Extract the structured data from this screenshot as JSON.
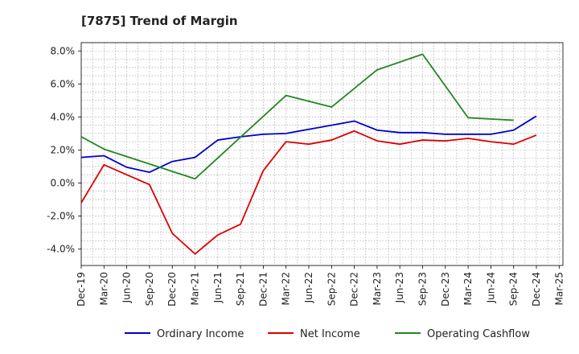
{
  "chart_data": {
    "type": "line",
    "title": "[7875]  Trend of Margin",
    "xlabel": "",
    "ylabel": "",
    "ylim": [
      -5.0,
      8.5
    ],
    "yticks": [
      8.0,
      6.0,
      4.0,
      2.0,
      0.0,
      -2.0,
      -4.0
    ],
    "ytick_labels": [
      "8.0%",
      "6.0%",
      "4.0%",
      "2.0%",
      "0.0%",
      "-2.0%",
      "-4.0%"
    ],
    "x": [
      "Dec-19",
      "Mar-20",
      "Jun-20",
      "Sep-20",
      "Dec-20",
      "Mar-21",
      "Jun-21",
      "Sep-21",
      "Dec-21",
      "Mar-22",
      "Jun-22",
      "Sep-22",
      "Dec-22",
      "Mar-23",
      "Jun-23",
      "Sep-23",
      "Dec-23",
      "Mar-24",
      "Jun-24",
      "Sep-24",
      "Dec-24",
      "Mar-25"
    ],
    "grid": true,
    "legend_position": "bottom",
    "series": [
      {
        "name": "Ordinary Income",
        "color": "#0000cc",
        "values": [
          1.55,
          1.65,
          0.95,
          0.65,
          1.3,
          1.55,
          2.6,
          2.8,
          2.95,
          3.0,
          3.25,
          3.5,
          3.75,
          3.2,
          3.05,
          3.05,
          2.95,
          2.95,
          2.95,
          3.2,
          4.05,
          null
        ]
      },
      {
        "name": "Net Income",
        "color": "#dd0000",
        "values": [
          -1.2,
          1.1,
          0.5,
          -0.1,
          -3.05,
          -4.3,
          -3.15,
          -2.5,
          0.75,
          2.5,
          2.35,
          2.6,
          3.15,
          2.55,
          2.35,
          2.6,
          2.55,
          2.7,
          2.5,
          2.35,
          2.9,
          null
        ]
      },
      {
        "name": "Operating Cashflow",
        "color": "#228822",
        "values": [
          2.8,
          2.05,
          null,
          null,
          null,
          0.25,
          null,
          null,
          null,
          5.3,
          null,
          4.6,
          null,
          6.85,
          null,
          7.8,
          null,
          3.95,
          null,
          3.8,
          null,
          null
        ]
      }
    ]
  }
}
